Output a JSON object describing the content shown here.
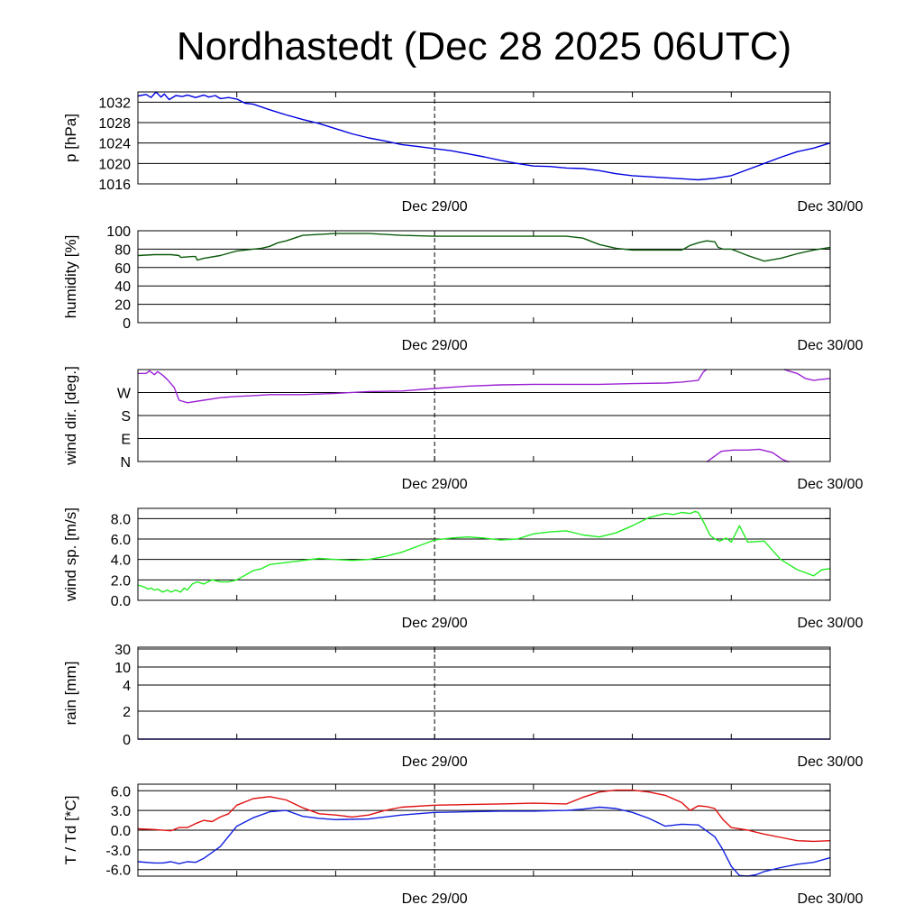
{
  "chart_data": {
    "type": "line",
    "title": "Nordhastedt (Dec 28 2025 06UTC)",
    "x_range_hours": [
      0,
      42
    ],
    "x_ticks": [
      {
        "hour": 18,
        "label": "Dec 29/00"
      },
      {
        "hour": 42,
        "label": "Dec 30/00"
      }
    ],
    "panels": [
      {
        "id": "pressure",
        "ylabel": "p [hPa]",
        "ylim": [
          1016,
          1034
        ],
        "yticks": [
          {
            "value": 1032,
            "label": "1032"
          },
          {
            "value": 1028,
            "label": "1028"
          },
          {
            "value": 1024,
            "label": "1024"
          },
          {
            "value": 1020,
            "label": "1020"
          },
          {
            "value": 1016,
            "label": "1016"
          }
        ],
        "series": [
          {
            "name": "pressure",
            "color": "#0000e0",
            "x": [
              0,
              0.5,
              0.8,
              1.1,
              1.4,
              1.6,
              1.9,
              2.3,
              2.7,
              3.0,
              3.5,
              4.0,
              4.3,
              4.7,
              5.0,
              5.5,
              6.0,
              6.5,
              7,
              8,
              9,
              10,
              11,
              12,
              13,
              14,
              15,
              16,
              17,
              18,
              19,
              20,
              21,
              22,
              23,
              24,
              25,
              26,
              27,
              28,
              29,
              30,
              31,
              32,
              33,
              34,
              35,
              36,
              37,
              38,
              39,
              40,
              41,
              42
            ],
            "y": [
              1033.2,
              1033.5,
              1032.9,
              1034.0,
              1033.0,
              1033.6,
              1032.5,
              1033.3,
              1033.1,
              1033.4,
              1032.9,
              1033.4,
              1033.0,
              1033.3,
              1032.7,
              1032.9,
              1032.6,
              1031.8,
              1031.6,
              1030.5,
              1029.5,
              1028.6,
              1027.8,
              1026.8,
              1025.8,
              1025.0,
              1024.4,
              1023.7,
              1023.3,
              1022.9,
              1022.5,
              1021.9,
              1021.3,
              1020.6,
              1020.0,
              1019.5,
              1019.4,
              1019.1,
              1019.0,
              1018.6,
              1018.0,
              1017.6,
              1017.4,
              1017.2,
              1017.0,
              1016.8,
              1017.1,
              1017.6,
              1018.8,
              1020.0,
              1021.2,
              1022.3,
              1023.0,
              1024.0
            ]
          }
        ]
      },
      {
        "id": "humidity",
        "ylabel": "humidity [%]",
        "ylim": [
          0,
          100
        ],
        "yticks": [
          {
            "value": 100,
            "label": "100"
          },
          {
            "value": 80,
            "label": "80"
          },
          {
            "value": 60,
            "label": "60"
          },
          {
            "value": 40,
            "label": "40"
          },
          {
            "value": 20,
            "label": "20"
          },
          {
            "value": 0,
            "label": "0"
          }
        ],
        "series": [
          {
            "name": "relative humidity",
            "color": "#0a5a0a",
            "x": [
              0,
              1,
              2,
              2.5,
              2.6,
              3.3,
              3.5,
              3.6,
              4,
              5,
              6,
              7,
              7.5,
              8,
              8.5,
              9,
              10,
              11,
              12,
              14,
              16,
              18,
              20,
              22,
              24,
              25,
              26,
              27,
              28,
              29,
              30,
              31,
              32,
              33,
              33.2,
              33.5,
              34,
              34.5,
              35,
              35.2,
              35.5,
              36,
              37,
              38,
              39,
              40,
              41,
              42
            ],
            "y": [
              73,
              74,
              74,
              73,
              71,
              72,
              72,
              68,
              70,
              73,
              78,
              80,
              81,
              83,
              87,
              89,
              95,
              96,
              97,
              97,
              95,
              94,
              94,
              94,
              94,
              94,
              94,
              92,
              85,
              81,
              79,
              79,
              79,
              79,
              81,
              84,
              87,
              89,
              88,
              82,
              80,
              80,
              73,
              67,
              70,
              75,
              79,
              82
            ]
          }
        ]
      },
      {
        "id": "wind_direction",
        "ylabel": "wind dir. [deg.]",
        "ylim": [
          0,
          360
        ],
        "yticks": [
          {
            "value": 270,
            "label": "W"
          },
          {
            "value": 180,
            "label": "S"
          },
          {
            "value": 90,
            "label": "E"
          },
          {
            "value": 0,
            "label": "N"
          }
        ],
        "series": [
          {
            "name": "wind direction",
            "color": "#9b22d4",
            "x": [
              0,
              0.5,
              0.7,
              1.0,
              1.2,
              1.5,
              1.8,
              2.2,
              2.5,
              3,
              4,
              5,
              6,
              7,
              8,
              10,
              12,
              14,
              16,
              18,
              20,
              22,
              24,
              26,
              28,
              30,
              32,
              33,
              34,
              34.3,
              34.5,
              null,
              39.2,
              39.5,
              40,
              40.5,
              41,
              41.5,
              42
            ],
            "y": [
              345,
              345,
              355,
              340,
              352,
              338,
              320,
              290,
              240,
              230,
              240,
              250,
              255,
              258,
              262,
              262,
              267,
              274,
              276,
              286,
              295,
              300,
              302,
              302,
              302,
              305,
              307,
              311,
              318,
              350,
              361,
              null,
              361,
              354,
              345,
              325,
              318,
              322,
              325
            ]
          },
          {
            "name": "wind direction (wrapped)",
            "color": "#9b22d4",
            "x": [
              34.5,
              35.4,
              36.1,
              37,
              37.7,
              38.5,
              39.1,
              39.5
            ],
            "y": [
              -2,
              40,
              45,
              45,
              48,
              35,
              8,
              -2
            ]
          }
        ]
      },
      {
        "id": "wind_speed",
        "ylabel": "wind sp. [m/s]",
        "ylim": [
          0,
          9
        ],
        "yticks": [
          {
            "value": 8,
            "label": "8.0"
          },
          {
            "value": 6,
            "label": "6.0"
          },
          {
            "value": 4,
            "label": "4.0"
          },
          {
            "value": 2,
            "label": "2.0"
          },
          {
            "value": 0,
            "label": "0.0"
          }
        ],
        "series": [
          {
            "name": "wind speed",
            "color": "#22ee22",
            "x": [
              0,
              0.4,
              0.6,
              0.8,
              1.0,
              1.2,
              1.5,
              1.8,
              2.0,
              2.3,
              2.6,
              2.8,
              3.0,
              3.3,
              3.6,
              4.0,
              4.5,
              5,
              5.5,
              6,
              7,
              7.5,
              8,
              8.5,
              9,
              10,
              11,
              12,
              13,
              14,
              15,
              16,
              17,
              18,
              19,
              20,
              21,
              22,
              23,
              24,
              25,
              26,
              27,
              28,
              29,
              30,
              31,
              31.5,
              32,
              32.5,
              33,
              33.5,
              33.8,
              34,
              34.4,
              34.7,
              35.0,
              35.3,
              35.7,
              36.0,
              36.5,
              37,
              38,
              39,
              40,
              40.5,
              41,
              41.5,
              42
            ],
            "y": [
              1.5,
              1.3,
              1.1,
              1.2,
              1.0,
              1.1,
              0.8,
              1.0,
              0.8,
              1.0,
              0.8,
              1.2,
              1.0,
              1.6,
              1.8,
              1.6,
              2.0,
              1.8,
              1.8,
              2.0,
              2.9,
              3.1,
              3.5,
              3.6,
              3.7,
              3.9,
              4.1,
              4.0,
              3.9,
              4.0,
              4.3,
              4.7,
              5.3,
              5.9,
              6.1,
              6.2,
              6.1,
              5.9,
              6.0,
              6.5,
              6.7,
              6.8,
              6.4,
              6.2,
              6.6,
              7.3,
              8.1,
              8.3,
              8.5,
              8.4,
              8.6,
              8.5,
              8.7,
              8.6,
              7.4,
              6.4,
              6.0,
              5.8,
              6.1,
              5.7,
              7.3,
              5.7,
              5.8,
              4.0,
              3.0,
              2.7,
              2.4,
              3.0,
              3.1
            ]
          }
        ]
      },
      {
        "id": "rain",
        "ylabel": "rain [mm]",
        "scale": "nonlinear",
        "ylim": [
          0,
          30
        ],
        "yticks": [
          {
            "value": 30,
            "label": "30"
          },
          {
            "value": 10,
            "label": "10"
          },
          {
            "value": 4,
            "label": "4"
          },
          {
            "value": 2,
            "label": "2"
          },
          {
            "value": 0,
            "label": "0"
          }
        ],
        "series": [
          {
            "name": "precipitation",
            "color": "#0000a0",
            "x": [
              0,
              42
            ],
            "y": [
              0,
              0
            ]
          }
        ]
      },
      {
        "id": "temperature",
        "ylabel": "T / Td [*C]",
        "ylim": [
          -7.0,
          7.0
        ],
        "yticks": [
          {
            "value": 6,
            "label": "6.0"
          },
          {
            "value": 3,
            "label": "3.0"
          },
          {
            "value": 0,
            "label": "0.0"
          },
          {
            "value": -3,
            "label": "-3.0"
          },
          {
            "value": -6,
            "label": "-6.0"
          }
        ],
        "series": [
          {
            "name": "temperature",
            "color": "#e01010",
            "x": [
              0,
              1,
              2,
              2.5,
              3,
              3.5,
              4,
              4.5,
              5,
              5.5,
              6,
              7,
              8,
              9,
              10,
              11,
              12,
              13,
              14,
              15,
              16,
              18,
              20,
              22,
              24,
              26,
              27,
              28,
              29,
              30,
              31,
              32,
              33,
              33.5,
              34,
              34.5,
              35,
              35.5,
              36,
              37,
              38,
              39,
              40,
              41,
              42
            ],
            "y": [
              0.2,
              0.1,
              -0.1,
              0.4,
              0.4,
              1.0,
              1.5,
              1.3,
              2.0,
              2.5,
              3.8,
              4.8,
              5.1,
              4.6,
              3.4,
              2.5,
              2.3,
              2.0,
              2.3,
              3.0,
              3.5,
              3.8,
              3.9,
              4.0,
              4.1,
              4.0,
              5.0,
              5.8,
              6.1,
              6.1,
              5.8,
              5.3,
              4.2,
              3.0,
              3.7,
              3.6,
              3.3,
              1.6,
              0.4,
              0.0,
              -0.6,
              -1.1,
              -1.6,
              -1.7,
              -1.6
            ]
          },
          {
            "name": "dew point",
            "color": "#1020e0",
            "x": [
              0,
              1,
              1.5,
              2,
              2.5,
              3,
              3.5,
              4,
              5,
              6,
              7,
              8,
              9,
              10,
              11,
              12,
              14,
              16,
              18,
              20,
              22,
              24,
              26,
              27,
              28,
              29,
              30,
              31,
              32,
              33,
              34,
              35,
              35.5,
              36,
              36.5,
              37,
              37.5,
              38,
              39,
              40,
              41,
              42
            ],
            "y": [
              -4.8,
              -5.0,
              -5.0,
              -4.8,
              -5.1,
              -4.8,
              -4.9,
              -4.3,
              -2.5,
              0.6,
              1.9,
              2.8,
              3.0,
              2.1,
              1.8,
              1.6,
              1.7,
              2.3,
              2.7,
              2.8,
              2.9,
              2.9,
              3.0,
              3.2,
              3.5,
              3.3,
              2.7,
              1.8,
              0.6,
              0.9,
              0.8,
              -1.0,
              -3.0,
              -5.5,
              -6.9,
              -7.0,
              -6.8,
              -6.3,
              -5.7,
              -5.2,
              -4.9,
              -4.2
            ]
          }
        ]
      }
    ]
  }
}
